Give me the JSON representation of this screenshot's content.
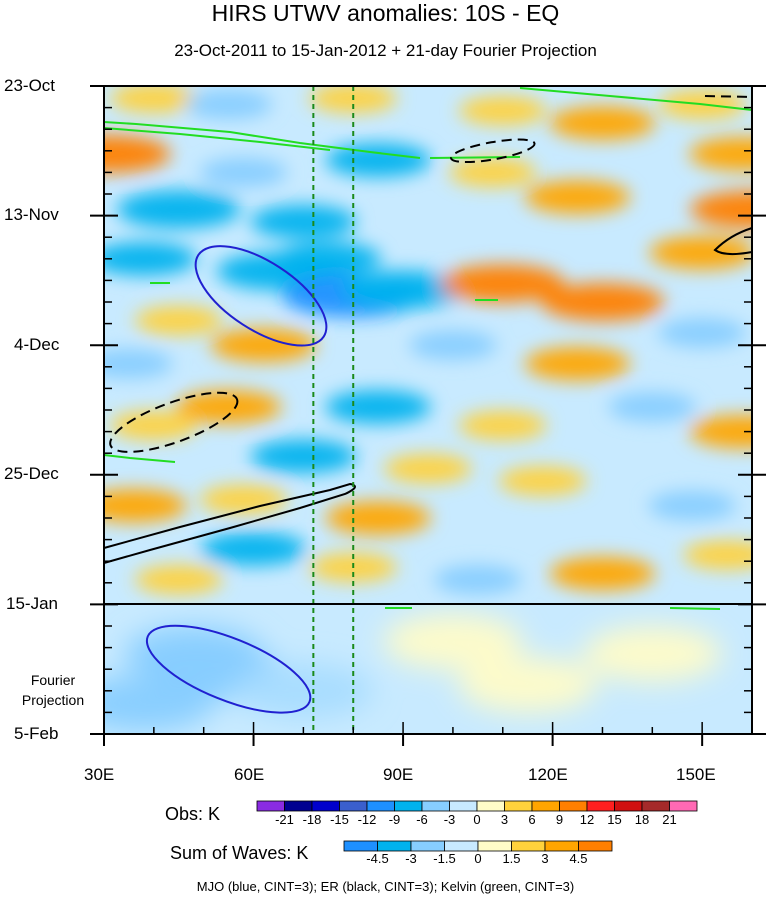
{
  "chart_data": {
    "type": "heatmap",
    "title": "HIRS UTWV anomalies: 10S - EQ",
    "subtitle": "23-Oct-2011 to 15-Jan-2012 + 21-day Fourier Projection",
    "x_range": [
      30,
      160
    ],
    "y_range_days": [
      0,
      105
    ],
    "x_ticks": [
      {
        "value": 30,
        "label": "30E"
      },
      {
        "value": 60,
        "label": "60E"
      },
      {
        "value": 90,
        "label": "90E"
      },
      {
        "value": 120,
        "label": "120E"
      },
      {
        "value": 150,
        "label": "150E"
      }
    ],
    "y_ticks": [
      {
        "day": 0,
        "label": "23-Oct"
      },
      {
        "day": 21,
        "label": "13-Nov"
      },
      {
        "day": 42,
        "label": "4-Dec"
      },
      {
        "day": 63,
        "label": "25-Dec"
      },
      {
        "day": 84,
        "label": "15-Jan"
      },
      {
        "day": 105,
        "label": "5-Feb"
      }
    ],
    "projection_start_day": 84,
    "projection_label": "Fourier Projection",
    "reference_lon_lines": [
      72,
      80
    ],
    "anomaly_blobs": [
      {
        "lon": 31,
        "day": 11,
        "value": 9
      },
      {
        "lon": 40,
        "day": 2,
        "value": 3
      },
      {
        "lon": 55,
        "day": 3,
        "value": -3
      },
      {
        "lon": 80,
        "day": 2,
        "value": 3
      },
      {
        "lon": 110,
        "day": 4,
        "value": 3
      },
      {
        "lon": 130,
        "day": 6,
        "value": 6
      },
      {
        "lon": 150,
        "day": 3,
        "value": 3
      },
      {
        "lon": 158,
        "day": 11,
        "value": 6
      },
      {
        "lon": 85,
        "day": 12,
        "value": -6
      },
      {
        "lon": 58,
        "day": 14,
        "value": -3
      },
      {
        "lon": 45,
        "day": 20,
        "value": -9
      },
      {
        "lon": 70,
        "day": 22,
        "value": -6
      },
      {
        "lon": 108,
        "day": 14,
        "value": 3
      },
      {
        "lon": 125,
        "day": 18,
        "value": 6
      },
      {
        "lon": 160,
        "day": 20,
        "value": 9
      },
      {
        "lon": 38,
        "day": 28,
        "value": -6
      },
      {
        "lon": 65,
        "day": 30,
        "value": -9
      },
      {
        "lon": 80,
        "day": 34,
        "value": -12
      },
      {
        "lon": 90,
        "day": 33,
        "value": -9
      },
      {
        "lon": 110,
        "day": 32,
        "value": 9
      },
      {
        "lon": 130,
        "day": 35,
        "value": 9
      },
      {
        "lon": 150,
        "day": 27,
        "value": 6
      },
      {
        "lon": 75,
        "day": 28,
        "value": -6
      },
      {
        "lon": 45,
        "day": 38,
        "value": 3
      },
      {
        "lon": 62,
        "day": 42,
        "value": 6
      },
      {
        "lon": 100,
        "day": 42,
        "value": -3
      },
      {
        "lon": 125,
        "day": 45,
        "value": 6
      },
      {
        "lon": 150,
        "day": 40,
        "value": -3
      },
      {
        "lon": 35,
        "day": 45,
        "value": -3
      },
      {
        "lon": 55,
        "day": 52,
        "value": 6
      },
      {
        "lon": 40,
        "day": 55,
        "value": 3
      },
      {
        "lon": 85,
        "day": 52,
        "value": -6
      },
      {
        "lon": 110,
        "day": 55,
        "value": 3
      },
      {
        "lon": 140,
        "day": 52,
        "value": -3
      },
      {
        "lon": 158,
        "day": 56,
        "value": 6
      },
      {
        "lon": 70,
        "day": 60,
        "value": -6
      },
      {
        "lon": 95,
        "day": 62,
        "value": 3
      },
      {
        "lon": 36,
        "day": 68,
        "value": 6
      },
      {
        "lon": 58,
        "day": 67,
        "value": 3
      },
      {
        "lon": 118,
        "day": 64,
        "value": 3
      },
      {
        "lon": 148,
        "day": 68,
        "value": -3
      },
      {
        "lon": 85,
        "day": 70,
        "value": 6
      },
      {
        "lon": 60,
        "day": 75,
        "value": -6
      },
      {
        "lon": 45,
        "day": 80,
        "value": 3
      },
      {
        "lon": 80,
        "day": 78,
        "value": 3
      },
      {
        "lon": 105,
        "day": 80,
        "value": -3
      },
      {
        "lon": 130,
        "day": 79,
        "value": 6
      },
      {
        "lon": 155,
        "day": 76,
        "value": 3
      },
      {
        "lon": 48,
        "day": 92,
        "value": -3
      },
      {
        "lon": 52,
        "day": 95,
        "value": -6
      },
      {
        "lon": 38,
        "day": 100,
        "value": -3
      },
      {
        "lon": 70,
        "day": 98,
        "value": -1.5
      },
      {
        "lon": 100,
        "day": 90,
        "value": 1.5
      },
      {
        "lon": 115,
        "day": 97,
        "value": 1.5
      },
      {
        "lon": 140,
        "day": 92,
        "value": 1.5
      }
    ],
    "wave_contours": [
      {
        "type": "MJO",
        "color": "#2020d0",
        "dash": false,
        "lon": 61.5,
        "day": 34,
        "rx": 15,
        "ry": 5.5,
        "angle_deg": 33
      },
      {
        "type": "MJO",
        "color": "#2020d0",
        "dash": false,
        "lon": 55,
        "day": 94.5,
        "rx": 17.5,
        "ry": 5.0,
        "angle_deg": 22
      },
      {
        "type": "ER",
        "color": "#000000",
        "dash": true,
        "lon": 44,
        "day": 54.5,
        "rx": 13.5,
        "ry": 3.2,
        "angle_deg": -20
      },
      {
        "type": "ER",
        "color": "#000000",
        "dash": true,
        "lon": 108,
        "day": 10.5,
        "rx": 8.5,
        "ry": 1.4,
        "angle_deg": -10
      }
    ],
    "colorbar_obs": {
      "label": "Obs: K",
      "levels": [
        "-21",
        "-18",
        "-15",
        "-12",
        "-9",
        "-6",
        "-3",
        "0",
        "3",
        "6",
        "9",
        "12",
        "15",
        "18",
        "21"
      ],
      "colors": [
        "#8a2be2",
        "#000090",
        "#0000cc",
        "#3a5fcd",
        "#1e90ff",
        "#00b2ee",
        "#87ceff",
        "#c8eaff",
        "#fffcc8",
        "#ffd23c",
        "#ffa500",
        "#ff7f00",
        "#ff2020",
        "#d01010",
        "#a52a2a",
        "#ff69b4"
      ]
    },
    "colorbar_waves": {
      "label": "Sum of Waves: K",
      "levels": [
        "-4.5",
        "-3",
        "-1.5",
        "0",
        "1.5",
        "3",
        "4.5"
      ],
      "colors": [
        "#1e90ff",
        "#00b2ee",
        "#87ceff",
        "#c8eaff",
        "#fffcc8",
        "#ffd23c",
        "#ffa500",
        "#ff7f00"
      ]
    },
    "legend_text": "MJO (blue, CINT=3); ER (black, CINT=3); Kelvin (green, CINT=3)"
  }
}
